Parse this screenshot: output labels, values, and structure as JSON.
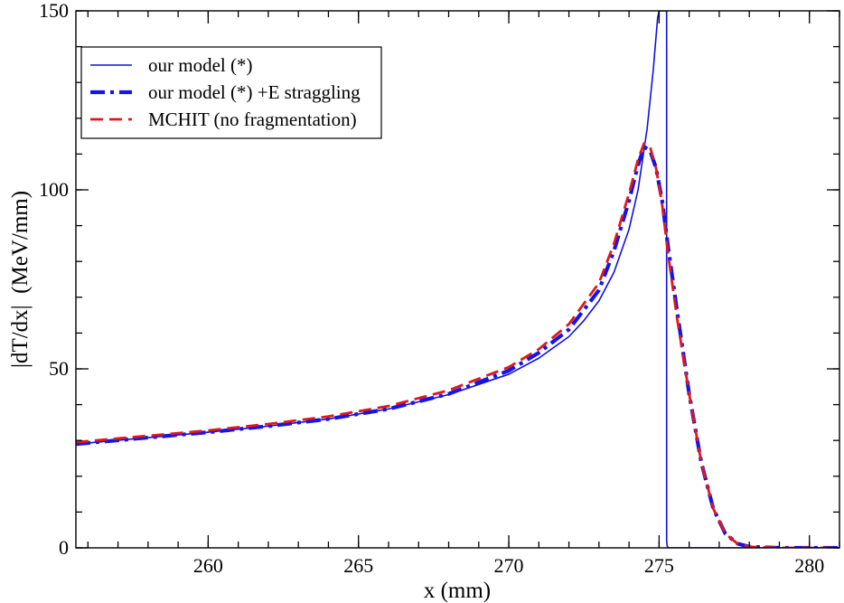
{
  "chart_data": {
    "type": "line",
    "title": "",
    "xlabel": "x (mm)",
    "ylabel": "|dT/dx|  (MeV/mm)",
    "xlim": [
      255.6,
      281
    ],
    "ylim": [
      0,
      150
    ],
    "x_major_ticks": [
      260,
      265,
      270,
      275,
      280
    ],
    "x_minor_step": 1,
    "y_major_ticks": [
      0,
      50,
      100,
      150
    ],
    "y_minor_step": 10,
    "grid": false,
    "legend_position": "top-left",
    "series": [
      {
        "name": "our model (*)",
        "color": "#1010e0",
        "style": "solid-thin",
        "x": [
          255.6,
          258,
          260,
          262,
          264,
          266,
          268,
          270,
          271,
          272,
          272.5,
          273,
          273.5,
          274,
          274.3,
          274.6,
          274.8,
          274.95,
          275.0,
          275.25,
          275.25,
          275.27,
          275.3,
          276,
          278,
          281
        ],
        "y": [
          29,
          30.8,
          32.3,
          34,
          36,
          38.8,
          42.8,
          48.5,
          53,
          59,
          63.5,
          69,
          77,
          89,
          100,
          117,
          133,
          148,
          150,
          150,
          2,
          0.5,
          0,
          0,
          0,
          0
        ]
      },
      {
        "name": "our model (*) +E straggling",
        "color": "#1515e6",
        "style": "dash-dot-thick",
        "x": [
          255.6,
          258,
          260,
          262,
          264,
          266,
          268,
          270,
          271,
          272,
          273,
          273.5,
          274,
          274.3,
          274.5,
          274.7,
          274.9,
          275.1,
          275.3,
          275.6,
          276,
          276.4,
          276.8,
          277.2,
          277.6,
          278,
          279,
          281
        ],
        "y": [
          29,
          30.8,
          32.3,
          34,
          36,
          38.8,
          43,
          49.5,
          54.5,
          61,
          72,
          83,
          97,
          107,
          112,
          111,
          106,
          97,
          84,
          66,
          43,
          24,
          11,
          4,
          1.2,
          0.3,
          0,
          0
        ]
      },
      {
        "name": "MCHIT (no fragmentation)",
        "color": "#e01818",
        "style": "dashed",
        "x": [
          255.6,
          258,
          260,
          262,
          264,
          266,
          268,
          270,
          271,
          272,
          273,
          273.5,
          274,
          274.3,
          274.5,
          274.7,
          274.9,
          275.1,
          275.3,
          275.6,
          276,
          276.4,
          276.8,
          277.2,
          277.6,
          278,
          279,
          281
        ],
        "y": [
          29.5,
          31.3,
          32.8,
          34.6,
          36.7,
          39.6,
          44,
          50.5,
          55.5,
          62.5,
          74,
          85,
          99,
          108.5,
          113,
          112,
          106,
          96,
          82,
          64,
          43,
          24,
          11,
          4,
          1.2,
          0.3,
          0,
          0
        ]
      }
    ]
  }
}
